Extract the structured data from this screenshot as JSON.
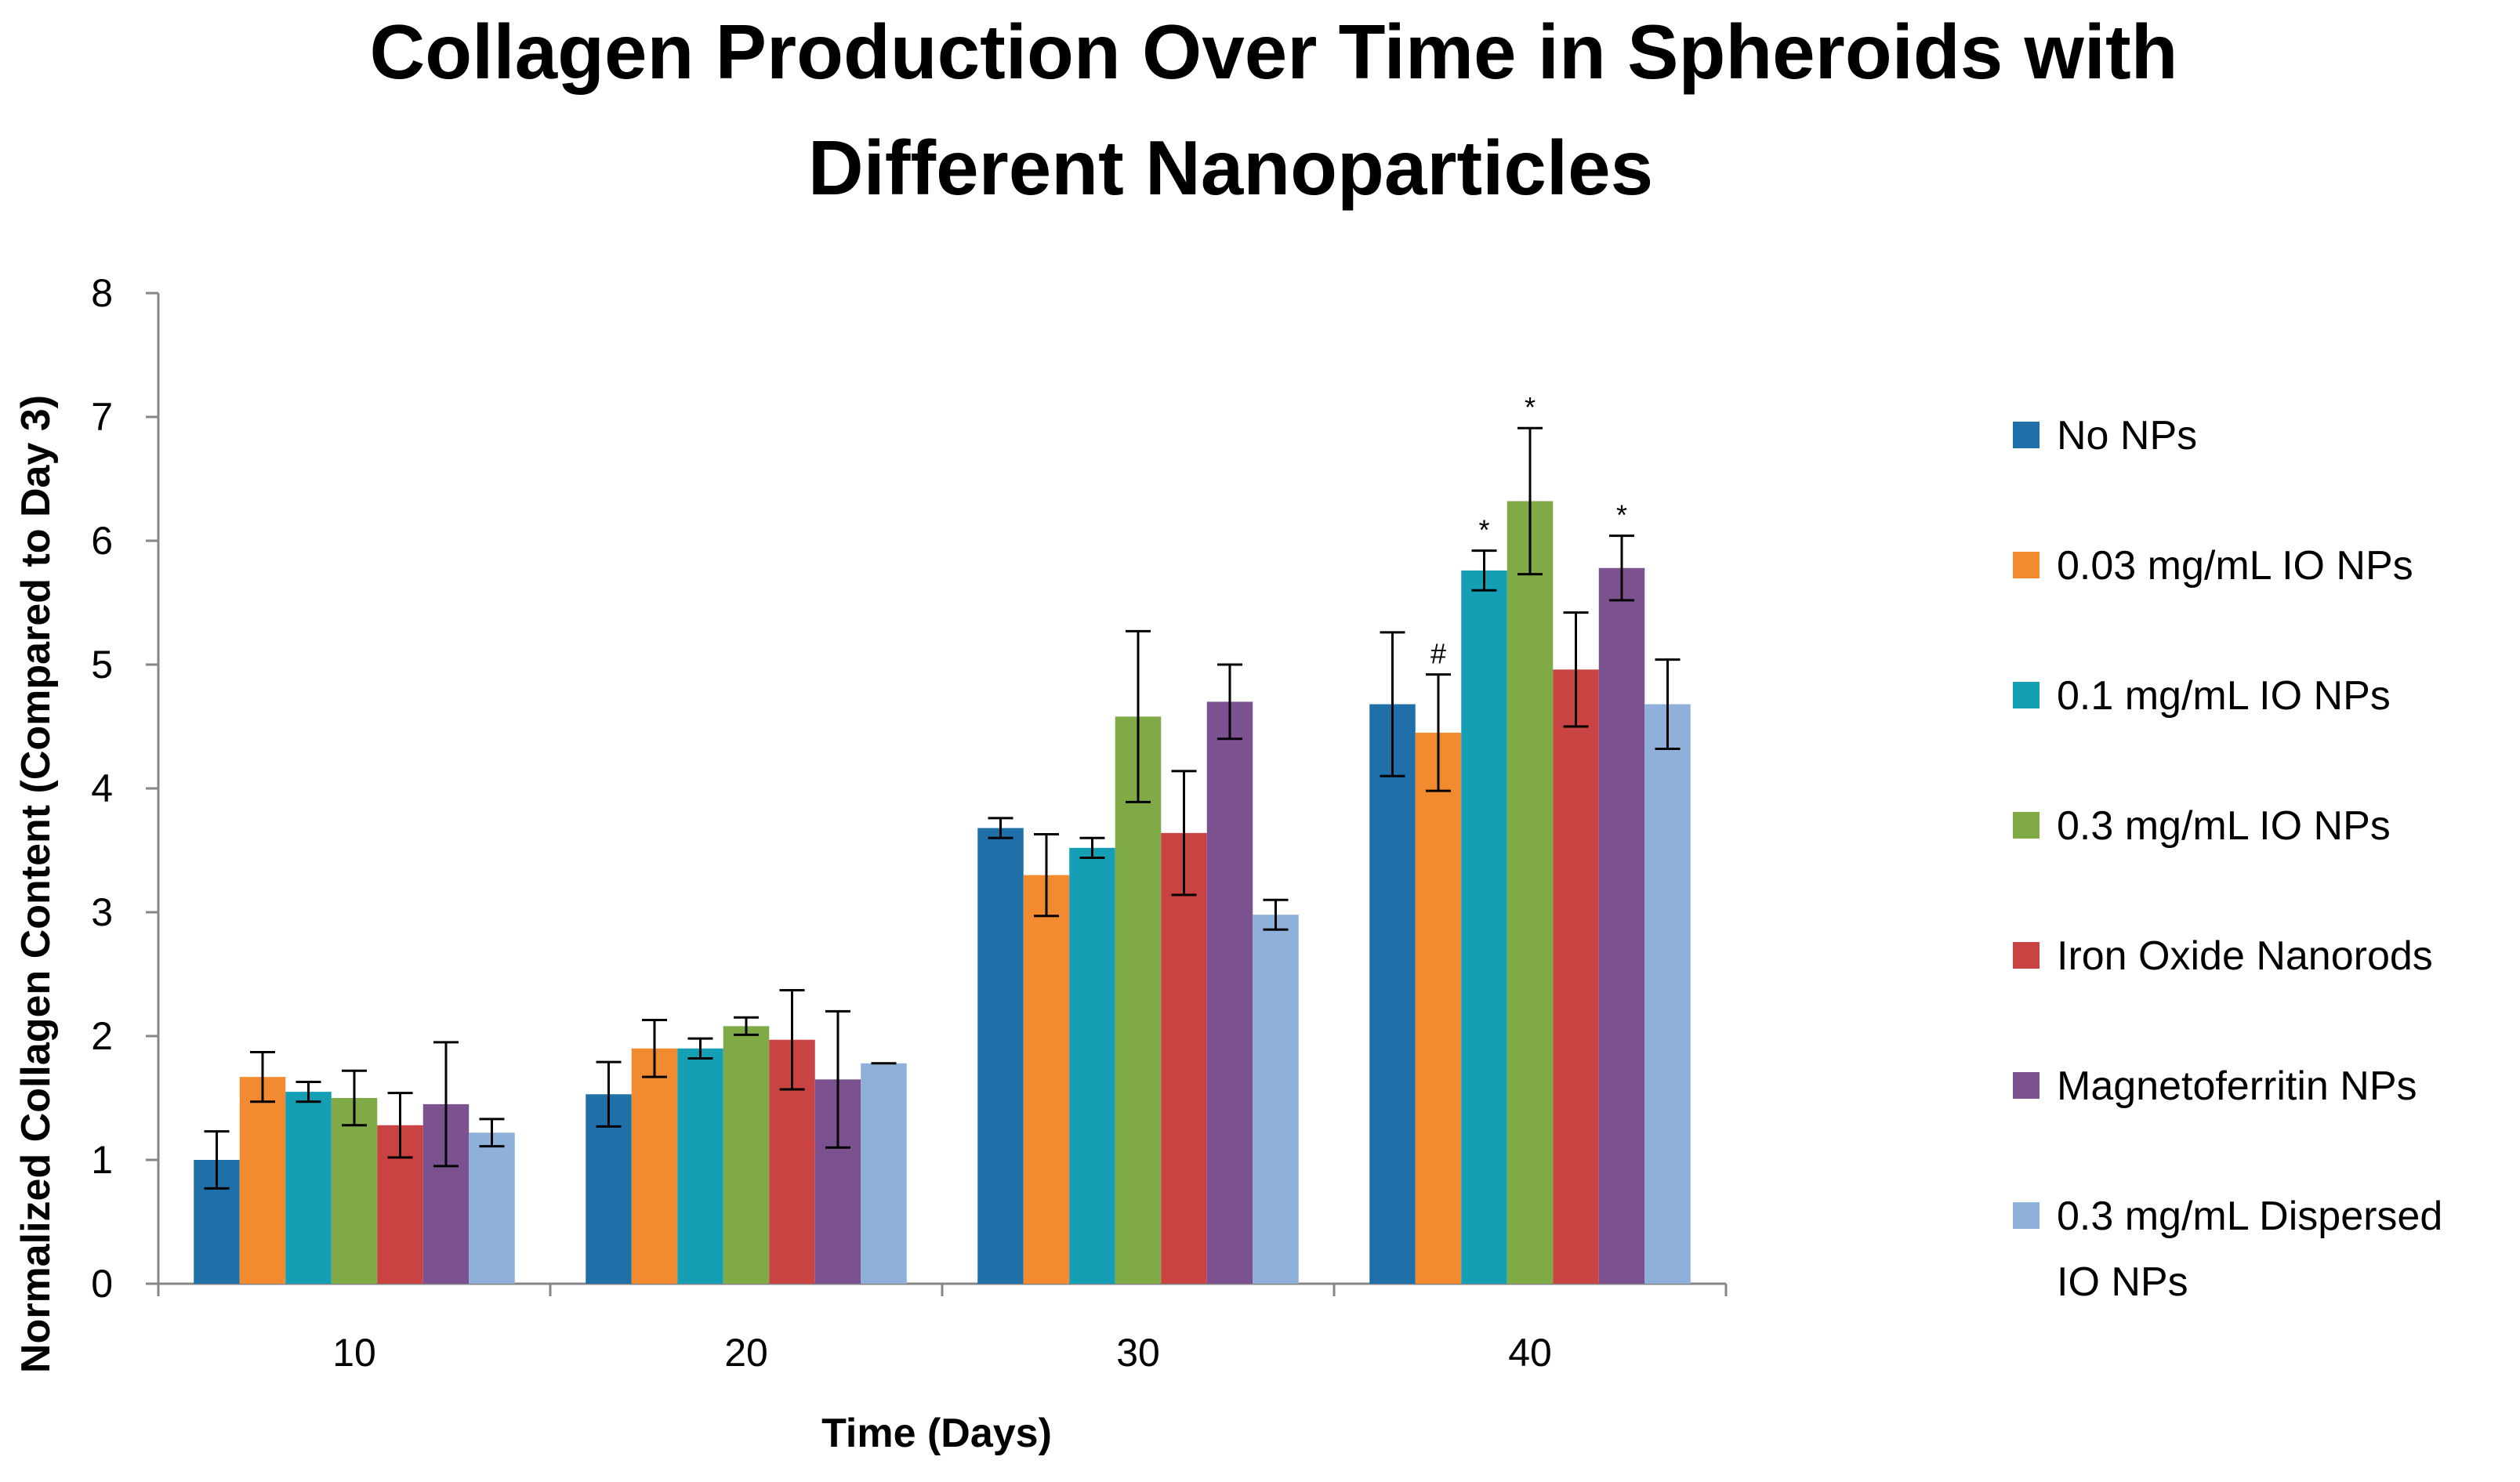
{
  "chart_data": {
    "type": "bar",
    "title_lines": [
      "Collagen Production Over Time in Spheroids with",
      "Different Nanoparticles"
    ],
    "xlabel": "Time (Days)",
    "ylabel": "Normalized Collagen Content (Compared to Day 3)",
    "ylim": [
      0,
      8
    ],
    "yticks": [
      0,
      1,
      2,
      3,
      4,
      5,
      6,
      7,
      8
    ],
    "categories": [
      "10",
      "20",
      "30",
      "40"
    ],
    "grid": false,
    "legend_position": "right",
    "series": [
      {
        "name": "No NPs",
        "label_lines": [
          "No NPs"
        ],
        "color": "#1F6FA8",
        "values": [
          1.0,
          1.53,
          3.68,
          4.68
        ],
        "errors": [
          0.23,
          0.26,
          0.08,
          0.58
        ]
      },
      {
        "name": "0.03 mg/mL IO NPs",
        "label_lines": [
          "0.03 mg/mL IO NPs"
        ],
        "color": "#F28A30",
        "values": [
          1.67,
          1.9,
          3.3,
          4.45
        ],
        "errors": [
          0.2,
          0.23,
          0.33,
          0.47
        ]
      },
      {
        "name": "0.1 mg/mL IO NPs",
        "label_lines": [
          "0.1 mg/mL IO NPs"
        ],
        "color": "#149FB5",
        "values": [
          1.55,
          1.9,
          3.52,
          5.76
        ],
        "errors": [
          0.08,
          0.08,
          0.08,
          0.16
        ]
      },
      {
        "name": "0.3 mg/mL IO NPs",
        "label_lines": [
          "0.3 mg/mL IO NPs"
        ],
        "color": "#7FAA46",
        "values": [
          1.5,
          2.08,
          4.58,
          6.32
        ],
        "errors": [
          0.22,
          0.07,
          0.69,
          0.59
        ]
      },
      {
        "name": "Iron Oxide Nanorods",
        "label_lines": [
          "Iron Oxide Nanorods"
        ],
        "color": "#C84342",
        "values": [
          1.28,
          1.97,
          3.64,
          4.96
        ],
        "errors": [
          0.26,
          0.4,
          0.5,
          0.46
        ]
      },
      {
        "name": "Magnetoferritin NPs",
        "label_lines": [
          "Magnetoferritin NPs"
        ],
        "color": "#7B528F",
        "values": [
          1.45,
          1.65,
          4.7,
          5.78
        ],
        "errors": [
          0.5,
          0.55,
          0.3,
          0.26
        ]
      },
      {
        "name": "0.3 mg/mL Dispersed IO NPs",
        "label_lines": [
          "0.3 mg/mL Dispersed",
          "IO NPs"
        ],
        "color": "#8FB0D8",
        "values": [
          1.22,
          1.78,
          2.98,
          4.68
        ],
        "errors": [
          0.11,
          0.0,
          0.12,
          0.36
        ]
      }
    ],
    "annotations": [
      {
        "text": "#",
        "category": "40",
        "series": "0.03 mg/mL IO NPs"
      },
      {
        "text": "*",
        "category": "40",
        "series": "0.1 mg/mL IO NPs"
      },
      {
        "text": "*",
        "category": "40",
        "series": "0.3 mg/mL IO NPs"
      },
      {
        "text": "*",
        "category": "40",
        "series": "Magnetoferritin NPs"
      }
    ]
  }
}
